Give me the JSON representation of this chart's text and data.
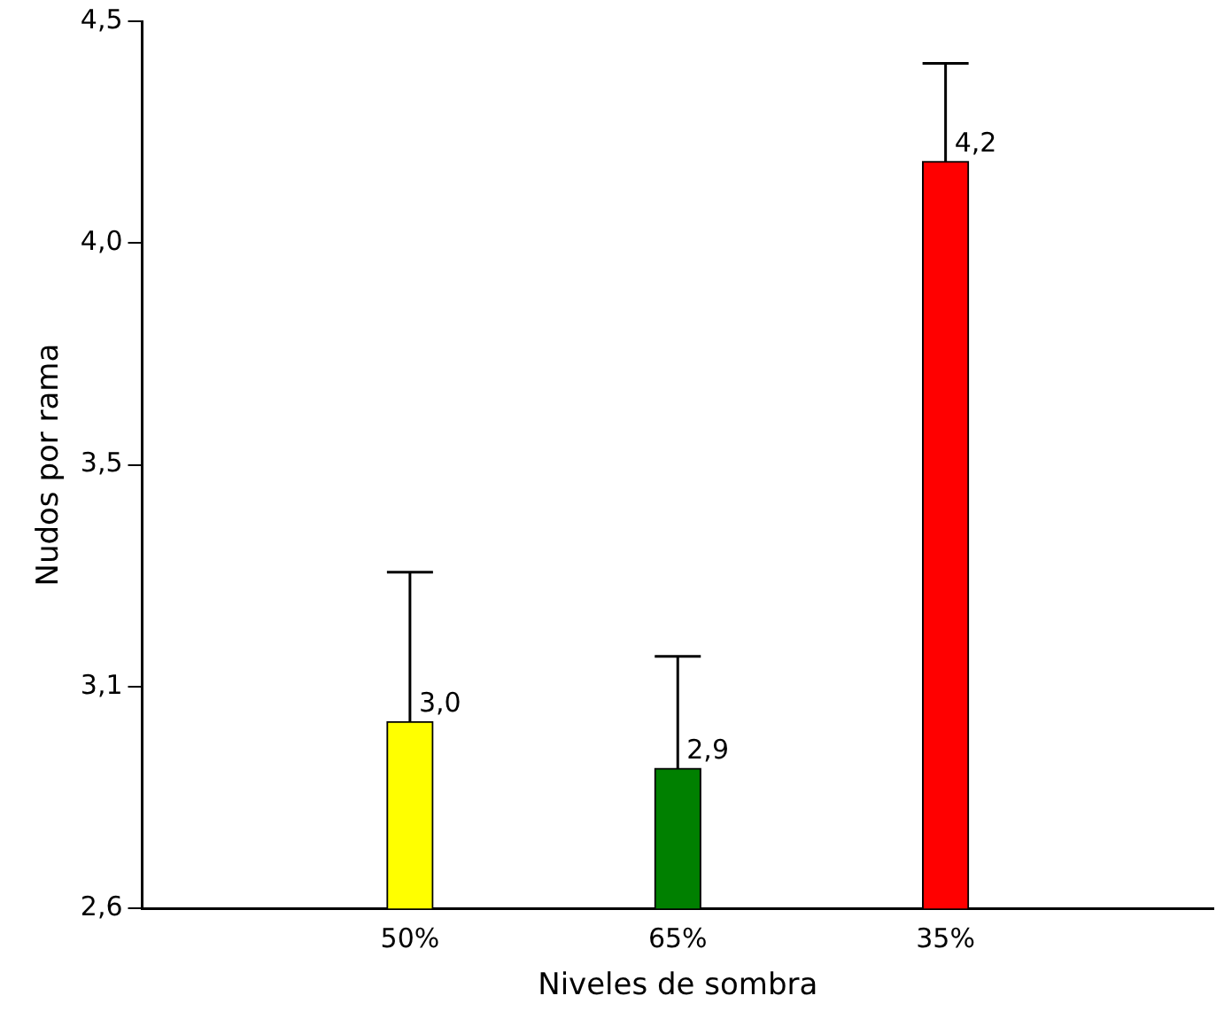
{
  "chart_data": {
    "type": "bar",
    "xlabel": "Niveles de sombra",
    "ylabel": "Nudos por rama",
    "categories": [
      "50%",
      "65%",
      "35%"
    ],
    "values": [
      3.0,
      2.9,
      4.2
    ],
    "colors": [
      "#ffff00",
      "#008000",
      "#ff0000"
    ],
    "errors": [
      [
        3.0,
        3.32
      ],
      [
        2.9,
        3.14
      ],
      [
        4.2,
        4.41
      ]
    ],
    "value_labels": [
      "3,0",
      "2,9",
      "4,2"
    ],
    "ylim": [
      2.6,
      4.5
    ],
    "yticks": [
      {
        "value": 2.6,
        "label": "2,6"
      },
      {
        "value": 3.075,
        "label": "3,1"
      },
      {
        "value": 3.55,
        "label": "3,5"
      },
      {
        "value": 4.025,
        "label": "4,0"
      },
      {
        "value": 4.5,
        "label": "4,5"
      }
    ],
    "grid": false,
    "legend": false
  }
}
